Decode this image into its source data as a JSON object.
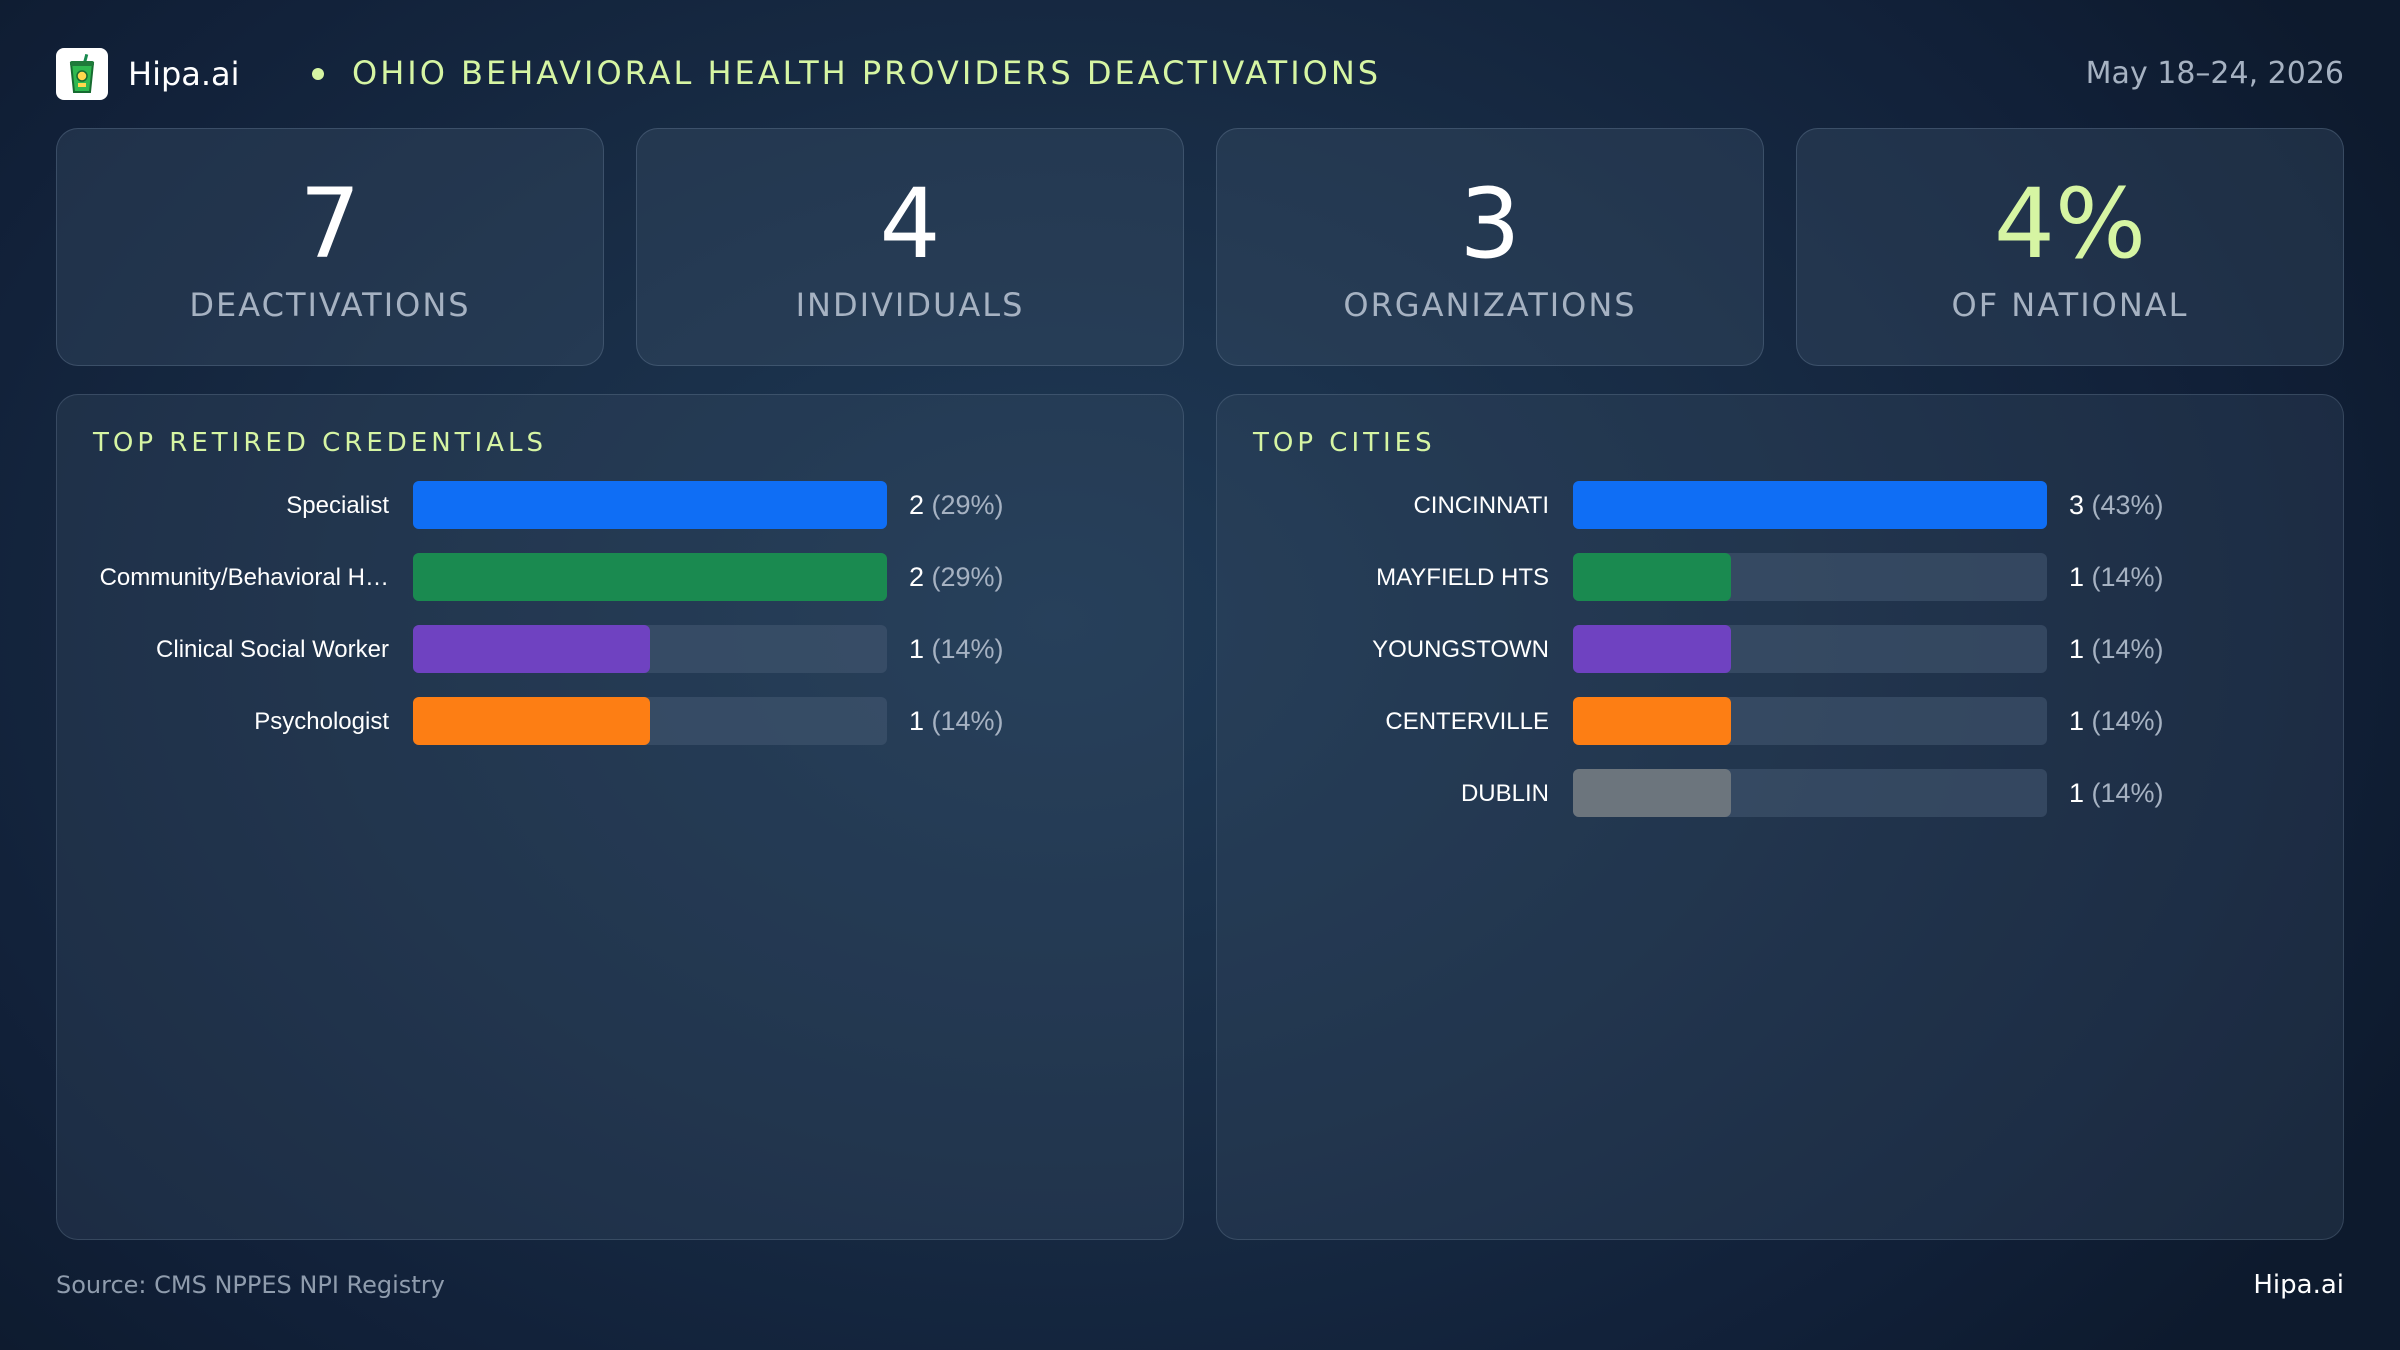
{
  "header": {
    "brand": "Hipa.ai",
    "title": "OHIO BEHAVIORAL HEALTH PROVIDERS DEACTIVATIONS",
    "date": "May 18–24, 2026",
    "logo_icon": "soda-cup-icon"
  },
  "stats": [
    {
      "value": "7",
      "label": "DEACTIVATIONS"
    },
    {
      "value": "4",
      "label": "INDIVIDUALS"
    },
    {
      "value": "3",
      "label": "ORGANIZATIONS"
    },
    {
      "value": "4%",
      "label": "OF NATIONAL",
      "accent": "#d6f5a3"
    }
  ],
  "chart_data": [
    {
      "type": "bar",
      "orientation": "horizontal",
      "title": "TOP RETIRED CREDENTIALS",
      "categories": [
        "Specialist",
        "Community/Behavioral H…",
        "Clinical Social Worker",
        "Psychologist"
      ],
      "values": [
        2,
        2,
        1,
        1
      ],
      "value_labels": [
        "2",
        "2",
        "1",
        "1"
      ],
      "percent_labels": [
        "(29%)",
        "(29%)",
        "(14%)",
        "(14%)"
      ],
      "colors": [
        "#0f6ef5",
        "#1a8a50",
        "#6f42c1",
        "#fd7e14"
      ],
      "xlim": [
        0,
        2
      ]
    },
    {
      "type": "bar",
      "orientation": "horizontal",
      "title": "TOP CITIES",
      "categories": [
        "CINCINNATI",
        "MAYFIELD HTS",
        "YOUNGSTOWN",
        "CENTERVILLE",
        "DUBLIN"
      ],
      "values": [
        3,
        1,
        1,
        1,
        1
      ],
      "value_labels": [
        "3",
        "1",
        "1",
        "1",
        "1"
      ],
      "percent_labels": [
        "(43%)",
        "(14%)",
        "(14%)",
        "(14%)",
        "(14%)"
      ],
      "colors": [
        "#0f6ef5",
        "#1a8a50",
        "#6f42c1",
        "#fd7e14",
        "#6c757d"
      ],
      "xlim": [
        0,
        3
      ]
    }
  ],
  "footer": {
    "source": "Source: CMS NPPES NPI Registry",
    "brand": "Hipa.ai"
  }
}
